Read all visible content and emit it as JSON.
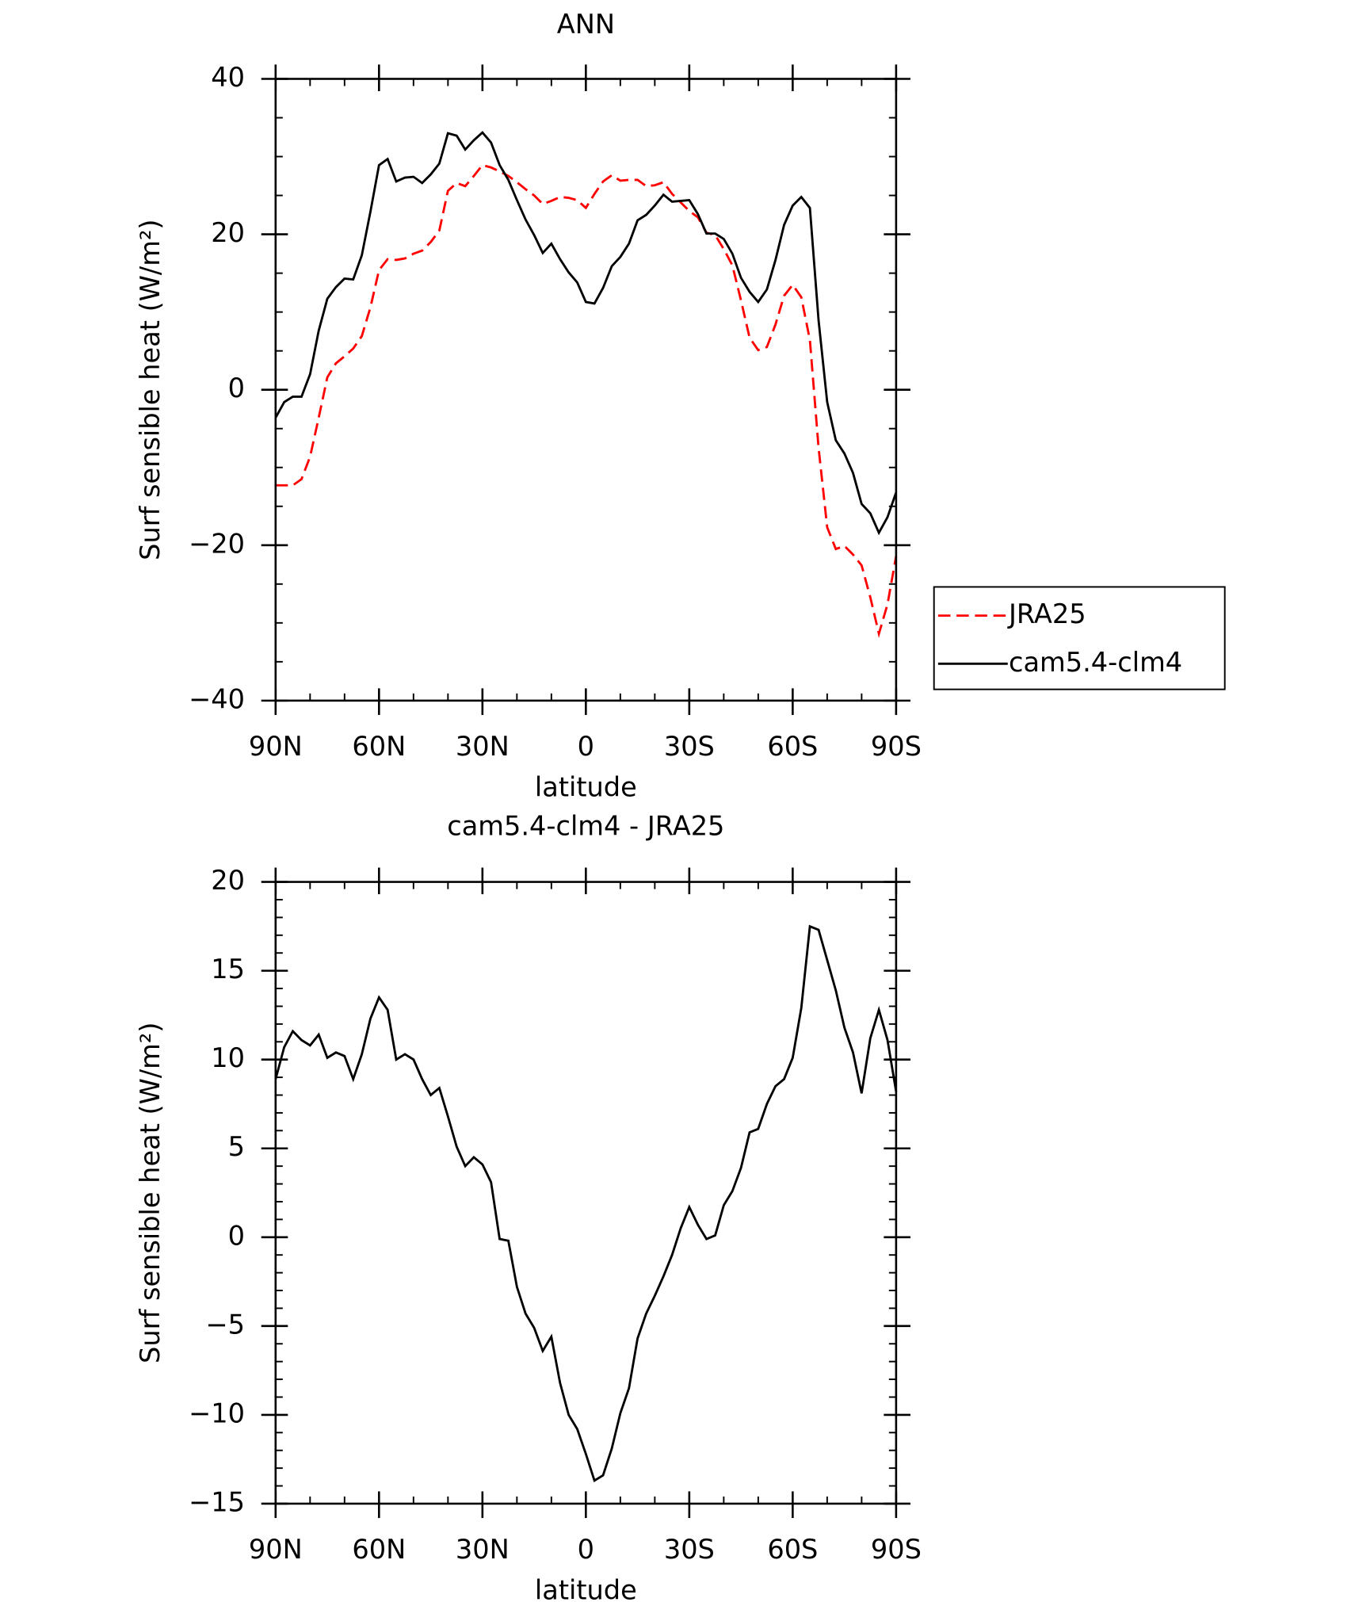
{
  "chart_data": [
    {
      "type": "line",
      "title": "ANN",
      "xlabel": "latitude",
      "ylabel": "Surf sensible heat (W/m²)",
      "x": [
        90,
        87.5,
        85,
        82.5,
        80,
        77.5,
        75,
        72.5,
        70,
        67.5,
        65,
        62.5,
        60,
        57.5,
        55,
        52.5,
        50,
        47.5,
        45,
        42.5,
        40,
        37.5,
        35,
        32.5,
        30,
        27.5,
        25,
        22.5,
        20,
        17.5,
        15,
        12.5,
        10,
        7.5,
        5,
        2.5,
        0,
        -2.5,
        -5,
        -7.5,
        -10,
        -12.5,
        -15,
        -17.5,
        -20,
        -22.5,
        -25,
        -27.5,
        -30,
        -32.5,
        -35,
        -37.5,
        -40,
        -42.5,
        -45,
        -47.5,
        -50,
        -52.5,
        -55,
        -57.5,
        -60,
        -62.5,
        -65,
        -67.5,
        -70,
        -72.5,
        -75,
        -77.5,
        -80,
        -82.5,
        -85,
        -87.5,
        -90
      ],
      "series": [
        {
          "name": "JRA25",
          "color": "#ff0000",
          "dash": "dashed",
          "values": [
            -12.3,
            -12.3,
            -12.3,
            -11.5,
            -8.6,
            -3.6,
            1.6,
            3.4,
            4.3,
            5.3,
            6.9,
            10.6,
            15.4,
            16.8,
            16.7,
            16.9,
            17.5,
            17.9,
            19.0,
            20.5,
            25.6,
            26.6,
            26.2,
            27.5,
            28.9,
            28.6,
            28.1,
            27.5,
            26.7,
            25.8,
            25.0,
            23.9,
            24.3,
            24.8,
            24.7,
            24.4,
            23.4,
            25.2,
            26.8,
            27.6,
            26.9,
            27.0,
            27.0,
            26.2,
            26.3,
            26.7,
            25.2,
            24.1,
            23.0,
            22.2,
            20.2,
            19.9,
            18.1,
            16.0,
            11.5,
            6.7,
            5.1,
            5.5,
            8.4,
            12.1,
            13.5,
            11.9,
            6.4,
            -7.5,
            -17.7,
            -20.5,
            -20.1,
            -21.2,
            -22.6,
            -26.7,
            -31.4,
            -27.6,
            -21.4
          ]
        },
        {
          "name": "cam5.4-clm4",
          "color": "#000000",
          "dash": "solid",
          "values": [
            -3.6,
            -1.6,
            -0.9,
            -0.9,
            2.0,
            7.6,
            11.7,
            13.2,
            14.3,
            14.2,
            17.3,
            22.9,
            28.9,
            29.7,
            26.8,
            27.3,
            27.4,
            26.6,
            27.7,
            29.1,
            33.0,
            32.7,
            30.9,
            32.1,
            33.1,
            31.8,
            28.9,
            27.0,
            24.4,
            21.9,
            19.9,
            17.6,
            18.8,
            16.8,
            15.1,
            13.8,
            11.3,
            11.1,
            13.1,
            15.9,
            17.1,
            18.8,
            21.8,
            22.5,
            23.7,
            25.1,
            24.2,
            24.3,
            24.4,
            22.6,
            20.1,
            20.1,
            19.4,
            17.5,
            14.4,
            12.6,
            11.3,
            12.9,
            16.7,
            21.2,
            23.7,
            24.8,
            23.4,
            8.9,
            -1.6,
            -6.5,
            -8.2,
            -10.7,
            -14.7,
            -15.9,
            -18.4,
            -16.4,
            -13.2
          ]
        }
      ],
      "xlim": [
        90,
        -90
      ],
      "xticks": [
        {
          "value": 90,
          "label": "90N"
        },
        {
          "value": 60,
          "label": "60N"
        },
        {
          "value": 30,
          "label": "30N"
        },
        0,
        {
          "value": -30,
          "label": "30S"
        },
        {
          "value": -60,
          "label": "60S"
        },
        {
          "value": -90,
          "label": "90S"
        }
      ],
      "xminorticks": [
        80,
        70,
        50,
        40,
        20,
        10,
        -10,
        -20,
        -40,
        -50,
        -70,
        -80
      ],
      "ylim": [
        -40,
        40
      ],
      "yticks": [
        {
          "value": -40,
          "label": "−40"
        },
        {
          "value": -20,
          "label": "−20"
        },
        0,
        20,
        40
      ],
      "yminorticks": [
        -35,
        -30,
        -25,
        -15,
        -10,
        -5,
        5,
        10,
        15,
        25,
        30,
        35
      ],
      "legend": "right"
    },
    {
      "type": "line",
      "title": "cam5.4-clm4 - JRA25",
      "xlabel": "latitude",
      "ylabel": "Surf sensible heat (W/m²)",
      "x": [
        90,
        87.5,
        85,
        82.5,
        80,
        77.5,
        75,
        72.5,
        70,
        67.5,
        65,
        62.5,
        60,
        57.5,
        55,
        52.5,
        50,
        47.5,
        45,
        42.5,
        40,
        37.5,
        35,
        32.5,
        30,
        27.5,
        25,
        22.5,
        20,
        17.5,
        15,
        12.5,
        10,
        7.5,
        5,
        2.5,
        0,
        -2.5,
        -5,
        -7.5,
        -10,
        -12.5,
        -15,
        -17.5,
        -20,
        -22.5,
        -25,
        -27.5,
        -30,
        -32.5,
        -35,
        -37.5,
        -40,
        -42.5,
        -45,
        -47.5,
        -50,
        -52.5,
        -55,
        -57.5,
        -60,
        -62.5,
        -65,
        -67.5,
        -70,
        -72.5,
        -75,
        -77.5,
        -80,
        -82.5,
        -85,
        -87.5,
        -90
      ],
      "color": "#000000",
      "values": [
        8.9,
        10.7,
        11.6,
        11.1,
        10.8,
        11.4,
        10.1,
        10.4,
        10.2,
        8.9,
        10.3,
        12.3,
        13.5,
        12.8,
        10.0,
        10.3,
        10.0,
        8.9,
        8.0,
        8.4,
        6.8,
        5.1,
        4.0,
        4.5,
        4.1,
        3.1,
        -0.1,
        -0.2,
        -2.8,
        -4.3,
        -5.1,
        -6.4,
        -5.6,
        -8.2,
        -10.0,
        -10.8,
        -12.2,
        -13.7,
        -13.4,
        -11.9,
        -9.9,
        -8.5,
        -5.7,
        -4.3,
        -3.3,
        -2.2,
        -1.0,
        0.5,
        1.7,
        0.7,
        -0.1,
        0.1,
        1.8,
        2.6,
        3.9,
        5.9,
        6.1,
        7.5,
        8.5,
        8.9,
        10.1,
        12.9,
        17.5,
        17.3,
        15.6,
        13.9,
        11.8,
        10.4,
        8.1,
        11.2,
        12.8,
        11.1,
        8.2
      ],
      "xlim": [
        90,
        -90
      ],
      "xticks": [
        {
          "value": 90,
          "label": "90N"
        },
        {
          "value": 60,
          "label": "60N"
        },
        {
          "value": 30,
          "label": "30N"
        },
        0,
        {
          "value": -30,
          "label": "30S"
        },
        {
          "value": -60,
          "label": "60S"
        },
        {
          "value": -90,
          "label": "90S"
        }
      ],
      "xminorticks": [
        80,
        70,
        50,
        40,
        20,
        10,
        -10,
        -20,
        -40,
        -50,
        -70,
        -80
      ],
      "ylim": [
        -15,
        20
      ],
      "yticks": [
        {
          "value": -15,
          "label": "−15"
        },
        {
          "value": -10,
          "label": "−10"
        },
        {
          "value": -5,
          "label": "−5"
        },
        0,
        5,
        10,
        15,
        20
      ],
      "yminorticks": [
        -14,
        -13,
        -12,
        -11,
        -9,
        -8,
        -7,
        -6,
        -4,
        -3,
        -2,
        -1,
        1,
        2,
        3,
        4,
        6,
        7,
        8,
        9,
        11,
        12,
        13,
        14,
        16,
        17,
        18,
        19
      ]
    }
  ]
}
